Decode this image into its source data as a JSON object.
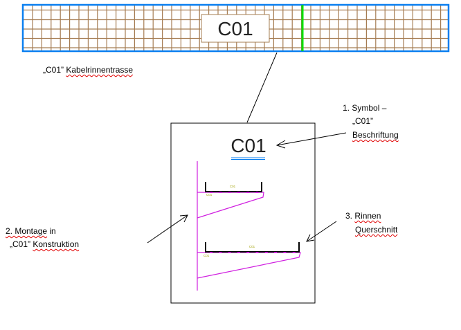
{
  "tray": {
    "code": "C01",
    "caption_quote": "„C01”",
    "caption_word": "Kabelrinnentrasse"
  },
  "detail": {
    "symbol": "C01",
    "small_label": "C01",
    "rail_label": "C01"
  },
  "annotations": {
    "symbol": {
      "line1": "1. Symbol –",
      "line2": "„C01”",
      "line3": "Beschriftung"
    },
    "mounting": {
      "line1_a": "2. Montage",
      "line1_b": "in",
      "line2_a": "„C01”",
      "line2_b": "Konstruktion"
    },
    "section": {
      "line1_a": "3.",
      "line1_b": "Rinnen",
      "line2": "Querschnitt"
    }
  },
  "colors": {
    "grid": "#a57c52",
    "border": "#0a7ff0",
    "marker": "#00e000",
    "support": "#d020e0",
    "label": "#a0a000"
  }
}
